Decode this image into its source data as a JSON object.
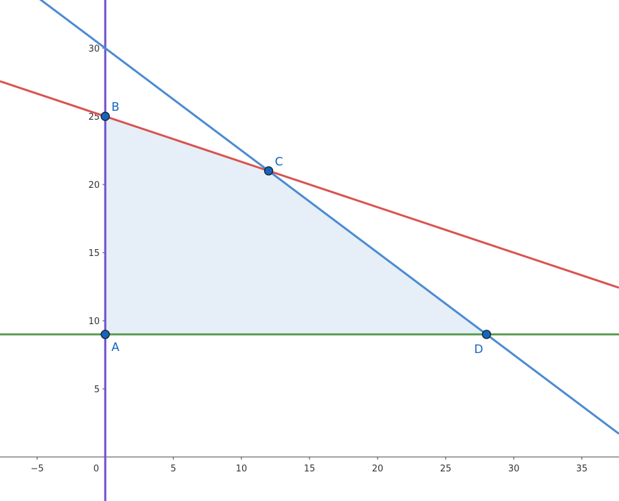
{
  "chart_data": {
    "type": "line",
    "title": "",
    "xlabel": "",
    "ylabel": "",
    "xlim": [
      -7.73,
      37.73
    ],
    "ylim": [
      -3.23,
      33.54
    ],
    "grid": false,
    "x_ticks": [
      -5,
      0,
      5,
      10,
      15,
      20,
      25,
      30,
      35
    ],
    "y_ticks": [
      5,
      10,
      15,
      20,
      25,
      30
    ],
    "origin_label": "0",
    "lines": [
      {
        "kind": "vertical",
        "x": 0,
        "color": "#6c4fd0"
      },
      {
        "kind": "linear",
        "a": 0,
        "b": 1,
        "c": 9,
        "color": "#5a9a50"
      },
      {
        "kind": "linear",
        "a": 1,
        "b": 3,
        "c": 75,
        "color": "#d9534f"
      },
      {
        "kind": "linear",
        "a": 3,
        "b": 4,
        "c": 120,
        "color": "#4a8ad4"
      }
    ],
    "region": {
      "vertices": [
        "A",
        "B",
        "C",
        "D"
      ],
      "color": "#e6eef8"
    },
    "points": [
      {
        "label": "A",
        "x": 0,
        "y": 9,
        "label_pos": "below-right"
      },
      {
        "label": "B",
        "x": 0,
        "y": 25,
        "label_pos": "above-right"
      },
      {
        "label": "C",
        "x": 12,
        "y": 21,
        "label_pos": "above-right"
      },
      {
        "label": "D",
        "x": 28,
        "y": 9,
        "label_pos": "below-left"
      }
    ],
    "point_color": "#1565c0"
  }
}
